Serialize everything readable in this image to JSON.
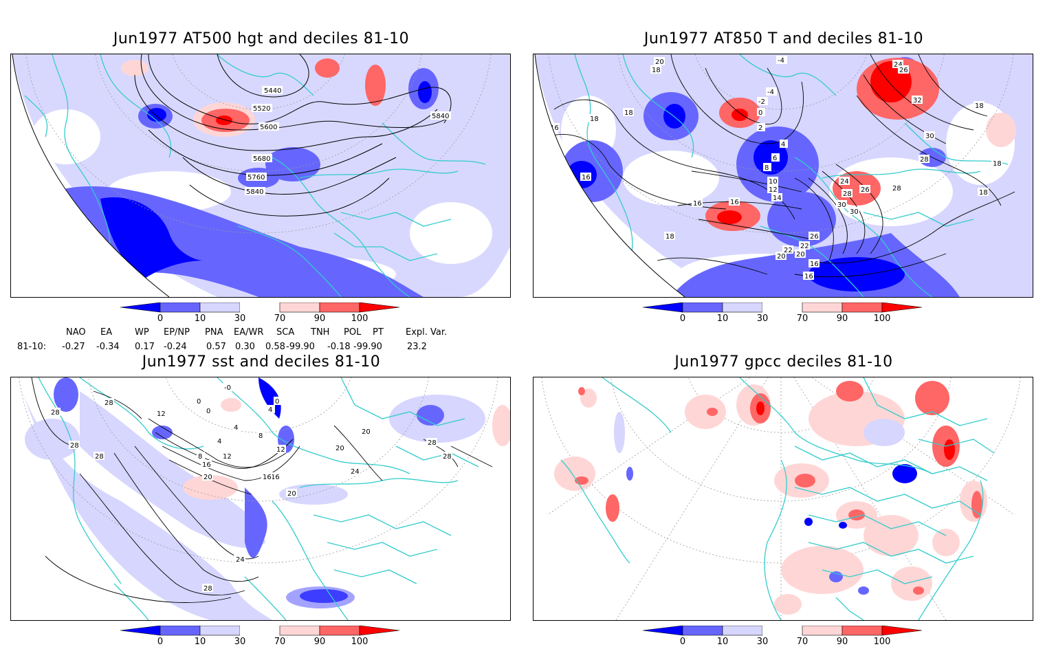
{
  "panels": [
    {
      "id": "p1",
      "title": "Jun1977 AT500 hgt and deciles 81-10",
      "contour_labels": [
        "5440",
        "5520",
        "5600",
        "5680",
        "5760",
        "5840",
        "5840"
      ]
    },
    {
      "id": "p2",
      "title": "Jun1977 AT850 T and deciles 81-10",
      "contour_labels": [
        "20",
        "18",
        "18",
        "16",
        "18",
        "16",
        "-4",
        "-4",
        "-2",
        "0",
        "2",
        "4",
        "6",
        "8",
        "10",
        "12",
        "14",
        "16",
        "16",
        "16",
        "18",
        "20",
        "22",
        "24",
        "26",
        "26",
        "28",
        "28",
        "28",
        "30",
        "30",
        "32",
        "18",
        "18",
        "18",
        "24",
        "16",
        "20",
        "22",
        "26",
        "30"
      ]
    },
    {
      "id": "p3",
      "title": "Jun1977 sst and deciles 81-10",
      "contour_labels": [
        "28",
        "28",
        "28",
        "28",
        "12",
        "0",
        "0",
        "-0",
        "4",
        "0",
        "4",
        "8",
        "4",
        "8",
        "12",
        "16",
        "20",
        "24",
        "28",
        "12",
        "16",
        "20",
        "20",
        "20",
        "24",
        "28",
        "28",
        "24",
        "16",
        "20"
      ]
    },
    {
      "id": "p4",
      "title": "Jun1977 gpcc deciles 81-10",
      "contour_labels": []
    }
  ],
  "colorbar": {
    "ticks": [
      "0",
      "10",
      "30",
      "70",
      "90",
      "100"
    ],
    "colors": {
      "lt0": "#0000ff",
      "c0_10": "#6666ff",
      "c10_30": "#d6d6ff",
      "c30_70": "#ffffff",
      "c70_90": "#ffd6d6",
      "c90_100": "#ff6666",
      "gt100": "#ff0000"
    }
  },
  "indices": {
    "headers": [
      "NAO",
      "EA",
      "WP",
      "EP/NP",
      "PNA",
      "EA/WR",
      "SCA",
      "TNH",
      "POL",
      "PT",
      "Expl. Var."
    ],
    "row_label": "81-10:",
    "values": [
      "-0.27",
      "-0.34",
      "0.17",
      "-0.24",
      "0.57",
      "0.30",
      "0.58",
      "-99.90",
      "-0.18",
      "-99.90",
      "23.2"
    ]
  },
  "colors": {
    "coast": "#33cccc",
    "frame": "#000000",
    "contour": "#000000"
  }
}
